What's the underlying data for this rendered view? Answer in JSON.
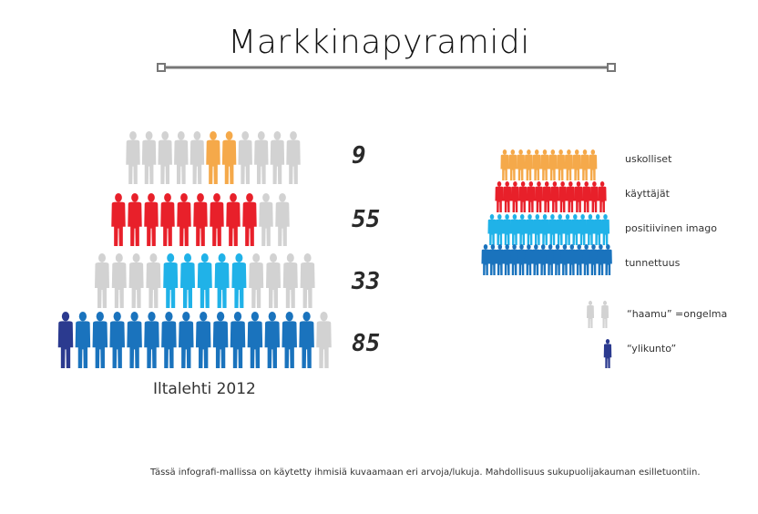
{
  "title": "Markkinapyramidi",
  "chart_data": {
    "type": "pictograph",
    "tiers": [
      {
        "label": "uskolliset",
        "value": 9,
        "color": "#f5a94a",
        "icons": 11,
        "colored": [
          5,
          7
        ]
      },
      {
        "label": "käyttäjät",
        "value": 55,
        "color": "#e8202a",
        "icons": 11,
        "colored": [
          0,
          9
        ]
      },
      {
        "label": "positiivinen imago",
        "value": 33,
        "color": "#20b2e8",
        "icons": 13,
        "colored": [
          4,
          9
        ]
      },
      {
        "label": "tunnettuus",
        "value": 85,
        "color": "#1a73bd",
        "icons": 16,
        "colored": [
          1,
          15
        ],
        "highlight_first": true
      }
    ],
    "ghost_color": "#d2d2d2",
    "highlight_color": "#2b3a8f"
  },
  "legend": {
    "ghost_label": "“haamu” =ongelma",
    "highlight_label": "“ylikunto”"
  },
  "source": "Iltalehti 2012",
  "footnote": "Tässä infografi-mallissa on käytetty ihmisiä kuvaamaan eri arvoja/lukuja. Mahdollisuus sukupuolijakauman esilletuontiin."
}
